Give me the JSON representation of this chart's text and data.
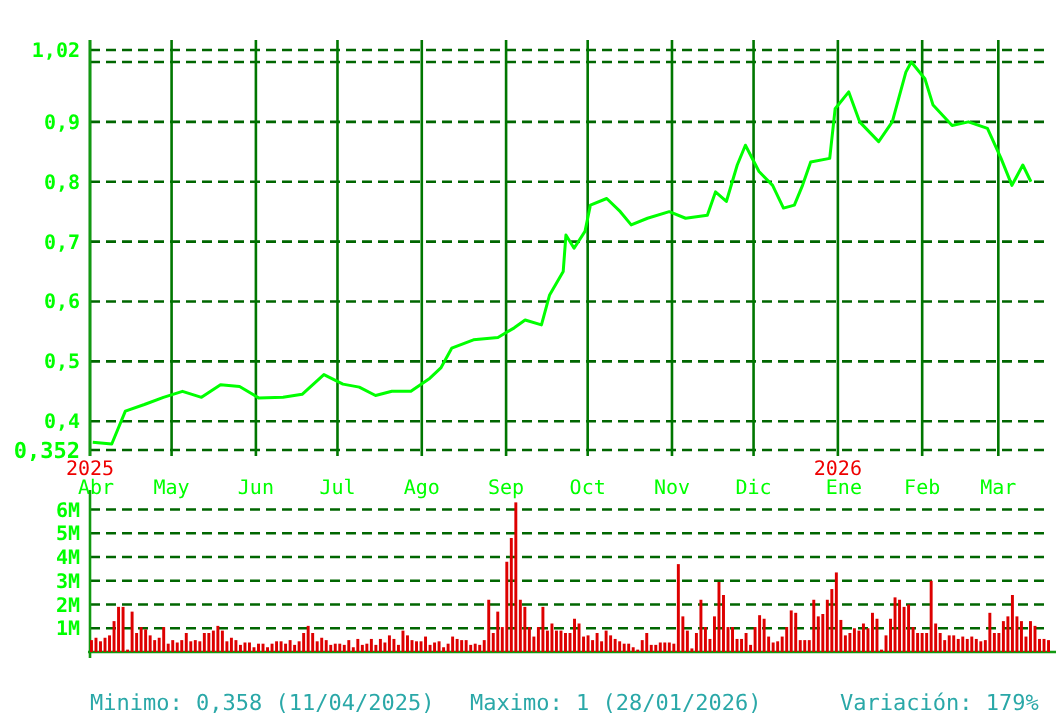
{
  "chart_data": [
    {
      "type": "line",
      "xlim": [
        "2025-04-01",
        "2026-03-20"
      ],
      "ylim": [
        0.352,
        1.02
      ],
      "xticks": [
        {
          "value": "2025-04-01",
          "label": "2025 Abr"
        },
        {
          "value": "2025-05-01",
          "label": "May"
        },
        {
          "value": "2025-06-01",
          "label": "Jun"
        },
        {
          "value": "2025-07-01",
          "label": "Jul"
        },
        {
          "value": "2025-08-01",
          "label": "Ago"
        },
        {
          "value": "2025-09-01",
          "label": "Sep"
        },
        {
          "value": "2025-10-01",
          "label": "Oct"
        },
        {
          "value": "2025-11-01",
          "label": "Nov"
        },
        {
          "value": "2025-12-01",
          "label": "Dic"
        },
        {
          "value": "2026-01-01",
          "label": "2026 Ene"
        },
        {
          "value": "2026-02-01",
          "label": "Feb"
        },
        {
          "value": "2026-03-01",
          "label": "Mar"
        }
      ],
      "yticks": [
        {
          "value": 0.352,
          "label": "0,352"
        },
        {
          "value": 0.4,
          "label": "0,4"
        },
        {
          "value": 0.5,
          "label": "0,5"
        },
        {
          "value": 0.6,
          "label": "0,6"
        },
        {
          "value": 0.7,
          "label": "0,7"
        },
        {
          "value": 0.8,
          "label": "0,8"
        },
        {
          "value": 0.9,
          "label": "0,9"
        },
        {
          "value": 1.0,
          "label": null
        },
        {
          "value": 1.02,
          "label": "1,02"
        }
      ],
      "grid": true,
      "series": [
        {
          "color": "#00ff00",
          "x": [
            "2025-04-02",
            "2025-04-09",
            "2025-04-14",
            "2025-04-21",
            "2025-04-28",
            "2025-05-05",
            "2025-05-12",
            "2025-05-19",
            "2025-05-26",
            "2025-06-02",
            "2025-06-11",
            "2025-06-18",
            "2025-06-26",
            "2025-07-03",
            "2025-07-09",
            "2025-07-15",
            "2025-07-21",
            "2025-07-28",
            "2025-08-04",
            "2025-08-08",
            "2025-08-12",
            "2025-08-20",
            "2025-08-29",
            "2025-09-04",
            "2025-09-08",
            "2025-09-14",
            "2025-09-17",
            "2025-09-22",
            "2025-09-23",
            "2025-09-26",
            "2025-09-30",
            "2025-10-02",
            "2025-10-08",
            "2025-10-13",
            "2025-10-17",
            "2025-10-23",
            "2025-10-31",
            "2025-11-06",
            "2025-11-14",
            "2025-11-17",
            "2025-11-21",
            "2025-11-25",
            "2025-11-28",
            "2025-12-03",
            "2025-12-08",
            "2025-12-12",
            "2025-12-16",
            "2025-12-19",
            "2025-12-22",
            "2025-12-29",
            "2025-12-31",
            "2026-01-05",
            "2026-01-09",
            "2026-01-16",
            "2026-01-21",
            "2026-01-26",
            "2026-01-28",
            "2026-02-02",
            "2026-02-05",
            "2026-02-12",
            "2026-02-18",
            "2026-02-25",
            "2026-03-02",
            "2026-03-06",
            "2026-03-10",
            "2026-03-13"
          ],
          "values": [
            0.365,
            0.362,
            0.417,
            0.428,
            0.44,
            0.45,
            0.44,
            0.461,
            0.458,
            0.439,
            0.44,
            0.445,
            0.478,
            0.462,
            0.457,
            0.443,
            0.45,
            0.45,
            0.472,
            0.489,
            0.522,
            0.536,
            0.54,
            0.556,
            0.569,
            0.561,
            0.611,
            0.65,
            0.711,
            0.689,
            0.717,
            0.761,
            0.772,
            0.75,
            0.728,
            0.739,
            0.75,
            0.739,
            0.744,
            0.783,
            0.767,
            0.828,
            0.861,
            0.817,
            0.794,
            0.756,
            0.761,
            0.794,
            0.833,
            0.839,
            0.922,
            0.95,
            0.9,
            0.867,
            0.9,
            0.983,
            1.0,
            0.972,
            0.928,
            0.894,
            0.9,
            0.889,
            0.839,
            0.794,
            0.828,
            0.8
          ]
        }
      ],
      "annotations": [
        "Minimo: 0,358 (11/04/2025)",
        "Maximo: 1 (28/01/2026)",
        "Variación: 179%"
      ]
    },
    {
      "type": "bar",
      "tick_labels": "y",
      "grid": "y",
      "ylim": [
        0,
        6.4
      ],
      "yticks": [
        {
          "value": 1,
          "label": "1M"
        },
        {
          "value": 2,
          "label": "2M"
        },
        {
          "value": 3,
          "label": "3M"
        },
        {
          "value": 4,
          "label": "4M"
        },
        {
          "value": 5,
          "label": "5M"
        },
        {
          "value": 6,
          "label": "6M"
        }
      ],
      "categories": [
        null,
        null,
        null,
        null,
        null,
        null,
        null,
        null,
        null,
        null,
        null,
        null,
        null,
        null,
        null,
        null,
        null,
        null,
        null,
        null,
        null,
        null,
        null,
        null,
        null,
        null,
        null,
        null,
        null,
        null,
        null,
        null,
        null,
        null,
        null,
        null,
        null,
        null,
        null,
        null,
        null,
        null,
        null,
        null,
        null,
        null,
        null,
        null,
        null,
        null,
        null,
        null,
        null,
        null,
        null,
        null,
        null,
        null,
        null,
        null,
        null,
        null,
        null,
        null,
        null,
        null,
        null,
        null,
        null,
        null,
        null,
        null,
        null,
        null,
        null,
        null,
        null,
        null,
        null,
        null,
        null,
        null,
        null,
        null,
        null,
        null,
        null,
        null,
        null,
        null,
        null,
        null,
        null,
        null,
        null,
        null,
        null,
        null,
        null,
        null,
        null,
        null,
        null,
        null,
        null,
        null,
        null,
        null,
        null,
        null,
        null,
        null,
        null,
        null,
        null,
        null,
        null,
        null,
        null,
        null,
        null,
        null,
        null,
        null,
        null,
        null,
        null,
        null,
        null,
        null,
        null,
        null,
        null,
        null,
        null,
        null,
        null,
        null,
        null,
        null,
        null,
        null,
        null,
        null,
        null,
        null,
        null,
        null,
        null,
        null,
        null,
        null,
        null,
        null,
        null,
        null,
        null,
        null,
        null,
        null,
        null,
        null,
        null,
        null,
        null,
        null,
        null,
        null,
        null,
        null,
        null,
        null,
        null,
        null,
        null,
        null,
        null,
        null,
        null,
        null,
        null,
        null,
        null,
        null,
        null,
        null,
        null,
        null,
        null,
        null,
        null,
        null,
        null,
        null,
        null,
        null,
        null,
        null,
        null,
        null,
        null,
        null,
        null,
        null,
        null,
        null,
        null,
        null,
        null,
        null,
        null,
        null,
        null
      ],
      "color": "#dd0000",
      "values": [
        0.5,
        0.6,
        0.45,
        0.6,
        0.7,
        1.3,
        1.9,
        1.9,
        0.1,
        1.7,
        0.8,
        1.05,
        0.95,
        0.7,
        0.5,
        0.6,
        1.05,
        0.35,
        0.5,
        0.4,
        0.5,
        0.8,
        0.45,
        0.5,
        0.45,
        0.8,
        0.8,
        0.9,
        1.1,
        0.9,
        0.45,
        0.6,
        0.5,
        0.3,
        0.4,
        0.4,
        0.2,
        0.35,
        0.35,
        0.2,
        0.35,
        0.45,
        0.45,
        0.35,
        0.5,
        0.3,
        0.45,
        0.8,
        1.1,
        0.8,
        0.45,
        0.6,
        0.5,
        0.3,
        0.35,
        0.35,
        0.3,
        0.5,
        0.2,
        0.55,
        0.3,
        0.35,
        0.55,
        0.3,
        0.55,
        0.4,
        0.7,
        0.55,
        0.3,
        0.9,
        0.7,
        0.5,
        0.45,
        0.45,
        0.65,
        0.3,
        0.4,
        0.45,
        0.2,
        0.35,
        0.65,
        0.55,
        0.5,
        0.5,
        0.3,
        0.35,
        0.3,
        0.5,
        2.2,
        0.8,
        1.7,
        1.05,
        3.8,
        4.8,
        6.3,
        2.2,
        1.9,
        1.05,
        0.65,
        1.05,
        1.9,
        0.9,
        1.2,
        0.9,
        0.9,
        0.8,
        0.8,
        1.4,
        1.2,
        0.65,
        0.7,
        0.5,
        0.8,
        0.45,
        0.9,
        0.7,
        0.55,
        0.45,
        0.35,
        0.35,
        0.2,
        0.1,
        0.5,
        0.8,
        0.3,
        0.3,
        0.4,
        0.4,
        0.4,
        0.35,
        3.7,
        1.5,
        0.9,
        0.15,
        0.8,
        2.2,
        1.05,
        0.55,
        1.5,
        2.95,
        2.4,
        1.05,
        1.05,
        0.55,
        0.55,
        0.8,
        0.3,
        1.05,
        1.55,
        1.4,
        0.65,
        0.4,
        0.45,
        0.65,
        1.05,
        1.75,
        1.65,
        0.5,
        0.5,
        0.5,
        2.2,
        1.5,
        1.6,
        2.2,
        2.65,
        3.35,
        1.35,
        0.7,
        0.8,
        1.0,
        0.9,
        1.2,
        1.0,
        1.65,
        1.4,
        0.1,
        0.7,
        1.4,
        2.3,
        2.2,
        1.9,
        2.0,
        1.05,
        0.8,
        0.8,
        0.8,
        3.0,
        1.2,
        0.8,
        0.5,
        0.7,
        0.7,
        0.55,
        0.65,
        0.55,
        0.65,
        0.55,
        0.45,
        0.5,
        1.65,
        0.8,
        0.8,
        1.3,
        1.5,
        2.4,
        1.5,
        1.3,
        0.65,
        1.3,
        1.1,
        0.55,
        0.55,
        0.5
      ]
    }
  ]
}
